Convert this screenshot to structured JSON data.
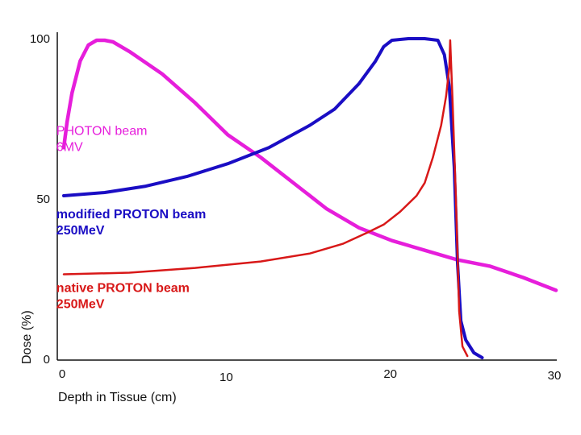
{
  "chart_data": {
    "type": "line",
    "title": "",
    "xlabel": "Depth in Tissue (cm)",
    "ylabel": "Dose (%)",
    "xlim": [
      0,
      30
    ],
    "ylim": [
      0,
      100
    ],
    "x_ticks": [
      "0",
      "10",
      "20",
      "30"
    ],
    "y_ticks": [
      "0",
      "50",
      "100"
    ],
    "series": [
      {
        "name": "PHOTON beam 6MV",
        "label_lines": [
          "PHOTON beam",
          "6MV"
        ],
        "color": "#e61edb",
        "label_bold": false,
        "points": [
          [
            0,
            66
          ],
          [
            0.2,
            74
          ],
          [
            0.5,
            83
          ],
          [
            1.0,
            93
          ],
          [
            1.5,
            98
          ],
          [
            2.0,
            99.5
          ],
          [
            2.5,
            99.5
          ],
          [
            3.0,
            99
          ],
          [
            4.0,
            96
          ],
          [
            6.0,
            89
          ],
          [
            8.0,
            80
          ],
          [
            10.0,
            70
          ],
          [
            12.0,
            63
          ],
          [
            14.0,
            55
          ],
          [
            16.0,
            47
          ],
          [
            18.0,
            41
          ],
          [
            20.0,
            37
          ],
          [
            22.0,
            34
          ],
          [
            24.0,
            31
          ],
          [
            26.0,
            29
          ],
          [
            28.0,
            25.5
          ],
          [
            30.0,
            21.5
          ]
        ]
      },
      {
        "name": "modified PROTON beam 250MeV",
        "label_lines": [
          "modified PROTON beam",
          "250MeV"
        ],
        "color": "#1a0dc4",
        "label_bold": true,
        "points": [
          [
            0,
            51
          ],
          [
            2.5,
            52
          ],
          [
            5.0,
            54
          ],
          [
            7.5,
            57
          ],
          [
            10.0,
            61
          ],
          [
            12.5,
            66
          ],
          [
            15.0,
            73
          ],
          [
            16.5,
            78
          ],
          [
            18.0,
            86
          ],
          [
            19.0,
            93
          ],
          [
            19.5,
            97.5
          ],
          [
            20.0,
            99.5
          ],
          [
            21.0,
            100
          ],
          [
            22.0,
            100
          ],
          [
            22.8,
            99.5
          ],
          [
            23.2,
            95
          ],
          [
            23.5,
            85
          ],
          [
            23.8,
            60
          ],
          [
            24.0,
            30
          ],
          [
            24.2,
            12
          ],
          [
            24.5,
            6
          ],
          [
            25.0,
            2
          ],
          [
            25.5,
            0.5
          ]
        ]
      },
      {
        "name": "native PROTON beam 250MeV",
        "label_lines": [
          "native PROTON beam",
          "250MeV"
        ],
        "color": "#d81818",
        "label_bold": true,
        "points": [
          [
            0,
            26.5
          ],
          [
            4.0,
            27
          ],
          [
            8.0,
            28.5
          ],
          [
            12.0,
            30.5
          ],
          [
            15.0,
            33
          ],
          [
            17.0,
            36
          ],
          [
            18.5,
            39.5
          ],
          [
            19.5,
            42
          ],
          [
            20.5,
            46
          ],
          [
            21.5,
            51
          ],
          [
            22.0,
            55
          ],
          [
            22.5,
            63
          ],
          [
            23.0,
            73
          ],
          [
            23.3,
            82
          ],
          [
            23.5,
            91
          ],
          [
            23.55,
            99.5
          ],
          [
            23.7,
            80
          ],
          [
            23.9,
            50
          ],
          [
            24.1,
            15
          ],
          [
            24.3,
            4
          ],
          [
            24.6,
            1
          ]
        ]
      }
    ],
    "label_anchor_data": [
      [
        -0.6,
        70
      ],
      [
        -0.6,
        44
      ],
      [
        -0.6,
        21
      ]
    ]
  }
}
